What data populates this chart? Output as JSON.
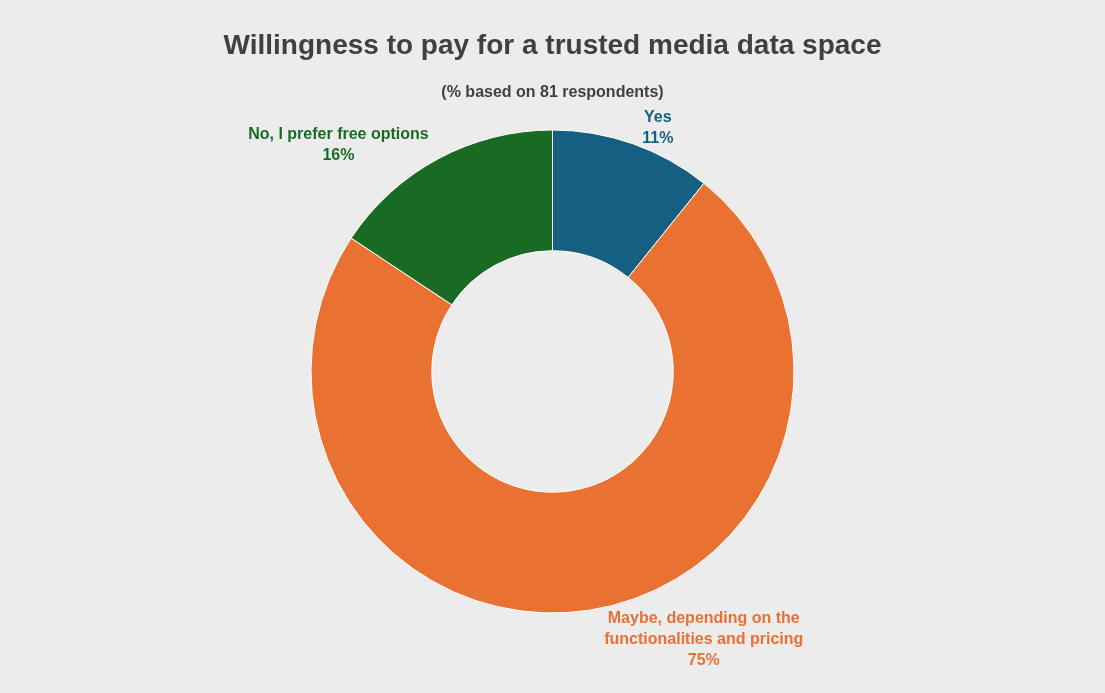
{
  "chart_data": {
    "type": "donut",
    "title": "Willingness to pay for a trusted media data space",
    "subtitle": "(% based on 81 respondents)",
    "categories": [
      "Yes",
      "Maybe, depending on the functionalities and pricing",
      "No, I prefer free options"
    ],
    "values": [
      11,
      75,
      16
    ],
    "colors": [
      "#156082",
      "#e97132",
      "#196b24"
    ],
    "value_labels": [
      "11%",
      "75%",
      "16%"
    ],
    "legend": false
  }
}
